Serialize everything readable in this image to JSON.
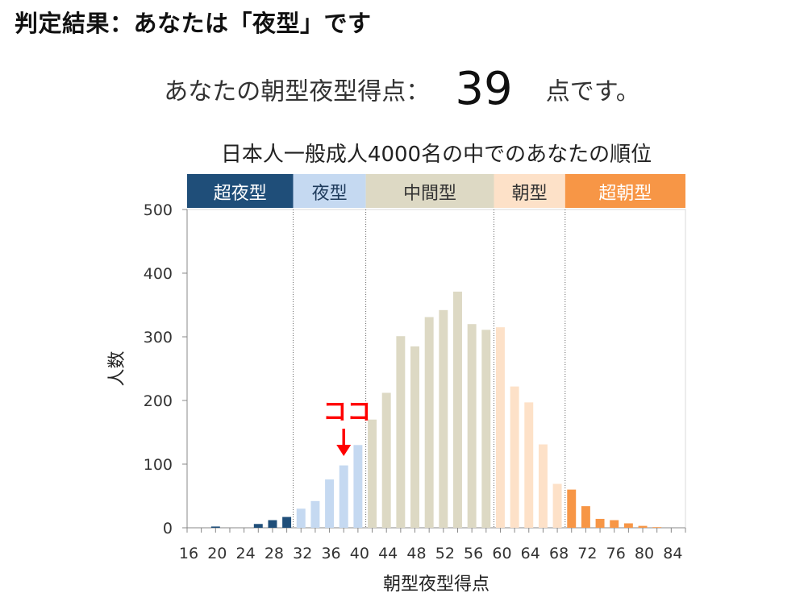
{
  "heading": "判定結果：あなたは「夜型」です",
  "score": {
    "prefix": "あなたの朝型夜型得点：",
    "value": "39",
    "suffix": "点です。"
  },
  "colors": {
    "super_night": "#1f4e79",
    "night": "#c5d9f1",
    "middle": "#ddd9c4",
    "morning": "#fde1c8",
    "super_morning": "#f79646",
    "marker": "#ff0000"
  },
  "chart_data": {
    "type": "bar",
    "title": "日本人一般成人4000名の中でのあなたの順位",
    "xlabel": "朝型夜型得点",
    "ylabel": "人数",
    "ylim": [
      0,
      500
    ],
    "yticks": [
      0,
      100,
      200,
      300,
      400,
      500
    ],
    "xlim": [
      16,
      86
    ],
    "xticks": [
      16,
      20,
      24,
      28,
      32,
      36,
      40,
      44,
      48,
      52,
      56,
      60,
      64,
      68,
      72,
      76,
      80,
      84
    ],
    "grid": false,
    "bins": [
      {
        "x": 20,
        "value": 2,
        "cat": "super_night"
      },
      {
        "x": 22,
        "value": 0,
        "cat": "super_night"
      },
      {
        "x": 24,
        "value": 0,
        "cat": "super_night"
      },
      {
        "x": 26,
        "value": 6,
        "cat": "super_night"
      },
      {
        "x": 28,
        "value": 12,
        "cat": "super_night"
      },
      {
        "x": 30,
        "value": 17,
        "cat": "super_night"
      },
      {
        "x": 32,
        "value": 30,
        "cat": "night"
      },
      {
        "x": 34,
        "value": 42,
        "cat": "night"
      },
      {
        "x": 36,
        "value": 76,
        "cat": "night"
      },
      {
        "x": 38,
        "value": 98,
        "cat": "night"
      },
      {
        "x": 40,
        "value": 130,
        "cat": "night"
      },
      {
        "x": 42,
        "value": 170,
        "cat": "middle"
      },
      {
        "x": 44,
        "value": 212,
        "cat": "middle"
      },
      {
        "x": 46,
        "value": 301,
        "cat": "middle"
      },
      {
        "x": 48,
        "value": 285,
        "cat": "middle"
      },
      {
        "x": 50,
        "value": 331,
        "cat": "middle"
      },
      {
        "x": 52,
        "value": 342,
        "cat": "middle"
      },
      {
        "x": 54,
        "value": 371,
        "cat": "middle"
      },
      {
        "x": 56,
        "value": 320,
        "cat": "middle"
      },
      {
        "x": 58,
        "value": 311,
        "cat": "middle"
      },
      {
        "x": 60,
        "value": 315,
        "cat": "morning"
      },
      {
        "x": 62,
        "value": 222,
        "cat": "morning"
      },
      {
        "x": 64,
        "value": 197,
        "cat": "morning"
      },
      {
        "x": 66,
        "value": 131,
        "cat": "morning"
      },
      {
        "x": 68,
        "value": 69,
        "cat": "morning"
      },
      {
        "x": 70,
        "value": 60,
        "cat": "super_morning"
      },
      {
        "x": 72,
        "value": 34,
        "cat": "super_morning"
      },
      {
        "x": 74,
        "value": 14,
        "cat": "super_morning"
      },
      {
        "x": 76,
        "value": 12,
        "cat": "super_morning"
      },
      {
        "x": 78,
        "value": 7,
        "cat": "super_morning"
      },
      {
        "x": 80,
        "value": 3,
        "cat": "super_morning"
      },
      {
        "x": 82,
        "value": 1,
        "cat": "super_morning"
      }
    ],
    "categories": [
      {
        "key": "super_night",
        "label": "超夜型",
        "from": 16,
        "to": 30.9
      },
      {
        "key": "night",
        "label": "夜型",
        "from": 30.9,
        "to": 41.1
      },
      {
        "key": "middle",
        "label": "中間型",
        "from": 41.1,
        "to": 59.1
      },
      {
        "key": "morning",
        "label": "朝型",
        "from": 59.1,
        "to": 69.1
      },
      {
        "key": "super_morning",
        "label": "超朝型",
        "from": 69.1,
        "to": 86
      }
    ],
    "dividers": [
      30.9,
      41.1,
      59.1,
      69.1
    ],
    "marker": {
      "label": "ココ",
      "x": 38
    }
  }
}
